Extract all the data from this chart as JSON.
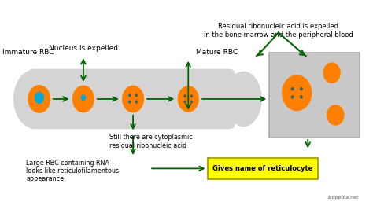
{
  "bg_color": "#ffffff",
  "arrow_color": "#006400",
  "orange": "#FF8000",
  "cyan": "#00AADD",
  "teal": "#336666",
  "yellow_box_face": "#FFFF00",
  "yellow_box_edge": "#999900",
  "gray_blob": "#d4d4d4",
  "gray_box": "#c8c8c8",
  "gray_box_edge": "#aaaaaa",
  "watermark": "labpedia.net",
  "annotations": {
    "immature_rbc": "Immature RBC",
    "nucleus_expelled": "Nucleus is expelled",
    "cytoplasmic": "Still there are cytoplasmic\nresidual ribonucleic acid",
    "mature_rbc": "Mature RBC",
    "large_rbc": "Large RBC containing RNA\nlooks like reticulofilamentous\nappearance",
    "gives_name": "Gives name of reticulocyte",
    "residual_line1": "Residual ribonucleic acid is expelled",
    "residual_line2": "in the bone marrow and the peripheral blood"
  },
  "fig_w": 4.74,
  "fig_h": 2.57,
  "dpi": 100
}
